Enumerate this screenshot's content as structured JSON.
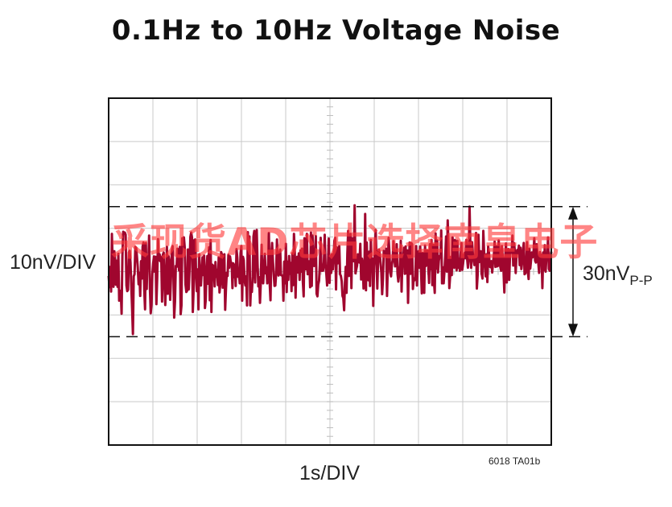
{
  "chart_data": {
    "type": "line",
    "title": "0.1Hz to 10Hz Voltage Noise",
    "xlabel": "1s/DIV",
    "ylabel": "10nV/DIV",
    "grid": true,
    "x_divisions": 10,
    "y_divisions": 8,
    "annotation": {
      "text": "30nV",
      "subscript": "P-P"
    },
    "reference_levels_div": [
      -1.5,
      1.5
    ],
    "figure_id": "6018 TA01b",
    "series": [
      {
        "color": "#a0062e",
        "values_div": [
          -0.1,
          -0.36,
          0.11,
          -0.46,
          0.87,
          0.15,
          -0.35,
          0.47,
          0.28,
          -0.3,
          0.25,
          -0.35,
          0.41,
          -0.67,
          -0.64,
          -0.44,
          -0.97,
          0.36,
          0.92,
          0.9,
          0.9,
          0.85,
          -0.32,
          -0.45,
          -0.42,
          0.44,
          0.48,
          0.21,
          -0.34,
          -0.85,
          -1.44,
          -0.11,
          -0.06,
          0.57,
          0.55,
          0.34,
          0.09,
          -0.29,
          -0.03,
          -0.56,
          0.24,
          -0.16,
          0.58,
          0.67,
          -0.42,
          -0.87,
          0.66,
          -0.4,
          0.32,
          0.15,
          0.83,
          -0.38,
          -0.96,
          -0.76,
          -0.06,
          0.19,
          0.35,
          0.0,
          0.34,
          -0.75,
          -0.15,
          0.75,
          0.26,
          0.4,
          0.24,
          0.34,
          -0.69,
          0.39,
          0.44,
          -0.28,
          -0.77,
          -0.14,
          0.57,
          -0.51,
          0.36,
          0.24,
          -0.65,
          -0.15,
          0.45,
          0.59,
          -0.04,
          -1.06,
          -0.69,
          0.13,
          0.11,
          0.53,
          0.39,
          0.03,
          0.57,
          -0.98,
          -0.78,
          0.77,
          0.6,
          0.79,
          0.56,
          -0.3,
          -0.47,
          -0.44,
          0.51,
          -0.41,
          0.07,
          0.8,
          0.9,
          0.79,
          -0.93,
          -0.42,
          0.73,
          0.74,
          -0.07,
          -0.45,
          0.05,
          -0.87,
          0.4,
          -0.22,
          -0.32,
          0.03,
          0.33,
          -0.08,
          0.37,
          -0.84,
          -0.65,
          0.07,
          0.36,
          -0.28,
          0.56,
          -0.66,
          0.73,
          -0.93,
          0.16,
          0.14,
          0.06,
          -0.34,
          0.22,
          -0.12,
          0.04,
          -0.31,
          0.33,
          -0.48,
          -0.28,
          0.45,
          0.39,
          -0.37,
          0.12,
          0.4,
          -0.88,
          -0.38,
          -0.03,
          -0.1,
          0.39,
          0.09,
          0.35,
          0.21,
          0.2,
          -0.38,
          0.19,
          -0.13,
          0.16,
          -0.33,
          0.52,
          0.32,
          -0.12,
          -0.03,
          -0.27,
          0.42,
          0.59,
          -0.67,
          0.34,
          0.26,
          -0.21,
          -0.32,
          -0.11,
          -0.78,
          0.91,
          0.34,
          0.81,
          -0.78,
          -0.29,
          -0.47,
          -0.12,
          0.81,
          0.94,
          -0.25,
          0.53,
          0.96,
          0.19,
          -0.34,
          -0.13,
          -0.72,
          -0.26,
          0.62,
          -0.1,
          -0.27,
          0.14,
          0.41,
          -0.04,
          0.1,
          -0.27,
          0.05,
          0.89,
          -0.26,
          -0.66,
          0.37,
          0.66,
          0.25,
          -0.06,
          -0.33,
          -0.32,
          -0.05,
          0.74,
          0.11,
          -0.09,
          0.4,
          0.51,
          -0.08,
          -0.09,
          -0.09,
          -0.67,
          0.23,
          -0.27,
          0.64,
          -0.47,
          0.23,
          -0.19,
          0.36,
          -0.05,
          0.2,
          -0.45,
          0.42,
          -0.31,
          0.87,
          0.46,
          -0.6,
          0.24,
          0.34,
          -0.02,
          0.42,
          -0.19,
          0.49,
          0.0,
          0.53,
          -0.23,
          -0.57,
          0.77,
          0.13,
          0.05,
          0.87,
          -0.06,
          0.24,
          0.23,
          -0.36,
          0.9,
          -0.33,
          0.83,
          0.32,
          0.13,
          0.2,
          0.82,
          -0.51,
          -0.57,
          -0.3,
          -0.21,
          0.15,
          0.78,
          0.02,
          0.15,
          0.02,
          0.22,
          0.85,
          0.15,
          -0.05,
          -0.32,
          0.13,
          0.76,
          -0.26,
          0.36,
          -0.03,
          0.4,
          0.05,
          0.33,
          0.71,
          0.78,
          -0.41,
          0.56,
          0.19,
          0.45,
          0.59,
          -0.06,
          -0.1,
          -0.22,
          -0.56,
          -0.61,
          -0.89,
          -0.27,
          0.11,
          -0.49,
          0.41,
          0.94,
          -0.1,
          0.18,
          0.87,
          -0.38,
          0.77,
          0.62,
          0.24,
          1.53,
          -0.04,
          0.05,
          0.14,
          0.4,
          0.37,
          0.21,
          0.64,
          -0.18,
          0.3,
          0.16,
          -0.39,
          -0.23,
          1.33,
          -0.43,
          0.67,
          0.03,
          -0.2,
          0.46,
          -0.33,
          0.73,
          0.06,
          0.3,
          -0.79,
          0.11,
          0.49,
          0.96,
          0.29,
          -0.39,
          0.29,
          0.51,
          0.41,
          0.2,
          -0.02,
          -0.52,
          -0.17,
          0.48,
          0.37,
          0.36,
          0.53,
          -0.56,
          0.15,
          0.78,
          0.43,
          -0.02,
          -0.11,
          0.16,
          0.27,
          0.7,
          0.36,
          0.12,
          0.24,
          0.63,
          -0.05,
          -0.23,
          -0.05,
          0.15,
          0.71,
          -0.46,
          0.28,
          0.33,
          0.55,
          -0.05,
          0.58,
          -0.04,
          0.49,
          -0.72,
          0.17,
          0.67,
          -0.05,
          0.66,
          0.63,
          -0.4,
          -0.16,
          -0.2,
          -0.12,
          0.59,
          -0.32,
          0.34,
          0.47,
          0.09,
          0.58,
          0.05,
          -0.5,
          0.43,
          0.19,
          -0.49,
          0.6,
          0.13,
          0.19,
          0.49,
          0.17,
          -0.26,
          0.63,
          0.05,
          0.73,
          -0.31,
          0.62,
          -0.22,
          -0.49,
          0.88,
          0.07,
          0.72,
          -0.02,
          0.25,
          0.36,
          0.33,
          0.95,
          -0.27,
          0.1,
          -0.27,
          0.01,
          0.37,
          0.81,
          0.0,
          1.18,
          0.58,
          -0.38,
          -0.11,
          0.34,
          -0.08,
          0.79,
          0.35,
          0.09,
          0.73,
          0.6,
          0.03,
          0.71,
          0.09,
          0.29,
          0.02,
          0.42,
          0.66,
          0.04,
          0.19,
          0.37,
          0.43,
          0.31,
          0.73,
          0.3,
          0.09,
          0.29,
          1.5,
          0.6,
          0.09,
          0.68,
          0.43,
          0.27,
          0.15,
          0.28,
          0.89,
          -0.39,
          -0.08,
          0.85,
          0.22,
          0.33,
          0.47,
          -0.05,
          -0.16,
          0.94,
          0.45,
          0.16,
          -0.11,
          0.4,
          -0.24,
          0.58,
          0.43,
          0.11,
          0.1,
          0.24,
          -0.02,
          0.22,
          0.36,
          0.69,
          0.11,
          0.59,
          0.12,
          0.13,
          0.72,
          0.44,
          0.11,
          0.02,
          0.59,
          0.34,
          0.01,
          -0.48,
          0.3,
          0.65,
          -0.25,
          0.43,
          0.52,
          -0.19,
          0.38,
          0.51,
          0.44,
          0.83,
          0.14,
          0.66,
          0.47,
          -0.03,
          0.37,
          0.5,
          0.42,
          0.6,
          0.15,
          0.55,
          0.06,
          0.22,
          0.48,
          0.66,
          -0.06,
          -0.04,
          0.12,
          0.68,
          0.0,
          -0.17,
          0.53,
          0.07,
          0.26,
          0.44,
          0.33,
          0.42,
          0.77,
          0.25,
          0.21,
          0.63,
          0.36,
          0.19,
          -0.03,
          0.45,
          0.21,
          0.39,
          -0.38,
          0.44,
          0.04,
          0.61,
          0.0,
          0.33,
          0.32,
          0.79,
          0.06,
          0.02,
          0.31,
          0.46
        ]
      }
    ]
  },
  "watermark": "采现货AD芯片选择南皇电子"
}
